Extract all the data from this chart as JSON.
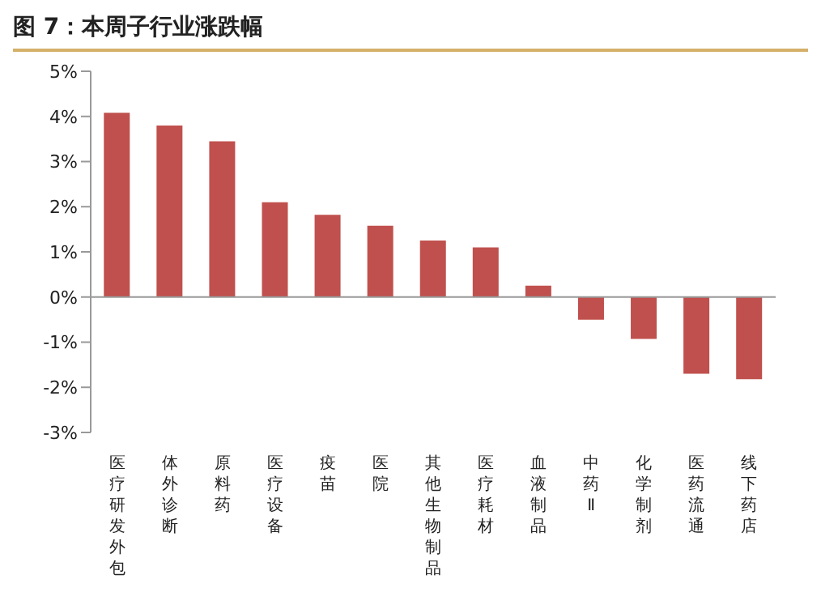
{
  "chart_data": {
    "type": "bar",
    "title": "图 7：本周子行业涨跌幅",
    "categories": [
      "医疗研发外包",
      "体外诊断",
      "原料药",
      "医疗设备",
      "疫苗",
      "医院",
      "其他生物制品",
      "医疗耗材",
      "血液制品",
      "中药Ⅱ",
      "化学制剂",
      "医药流通",
      "线下药店"
    ],
    "values": [
      4.08,
      3.8,
      3.45,
      2.1,
      1.82,
      1.58,
      1.25,
      1.1,
      0.25,
      -0.5,
      -0.93,
      -1.7,
      -1.82
    ],
    "color": "#c0504d",
    "ylim": [
      -3,
      5
    ],
    "yticks": [
      {
        "value": -3,
        "label": "-3%"
      },
      {
        "value": -2,
        "label": "-2%"
      },
      {
        "value": -1,
        "label": "-1%"
      },
      {
        "value": 0,
        "label": "0%"
      },
      {
        "value": 1,
        "label": "1%"
      },
      {
        "value": 2,
        "label": "2%"
      },
      {
        "value": 3,
        "label": "3%"
      },
      {
        "value": 4,
        "label": "4%"
      },
      {
        "value": 5,
        "label": "5%"
      }
    ],
    "legend": false
  }
}
